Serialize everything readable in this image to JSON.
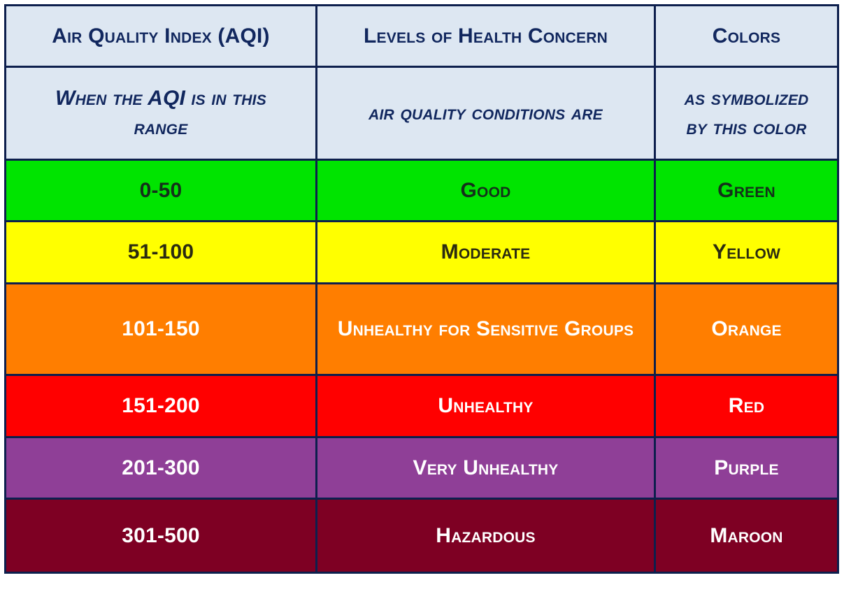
{
  "header": {
    "col1": "Air Quality Index (AQI)",
    "col2": "Levels of Health Concern",
    "col3": "Colors"
  },
  "subheader": {
    "col1": "When the AQI is in this range",
    "col2": "air quality conditions are",
    "col3": "as symbolized by this color"
  },
  "colors": {
    "header_bg": "#dde7f2",
    "header_text": "#11275e",
    "border": "#0d1f4d"
  },
  "rows": [
    {
      "range": "0-50",
      "level": "Good",
      "color": "Green",
      "bg": "#00e400",
      "text_color": "#14301a"
    },
    {
      "range": "51-100",
      "level": "Moderate",
      "color": "Yellow",
      "bg": "#ffff00",
      "text_color": "#2b2b10"
    },
    {
      "range": "101-150",
      "level": "Unhealthy for Sensitive Groups",
      "color": "Orange",
      "bg": "#ff7e00",
      "text_color": "#ffffff"
    },
    {
      "range": "151-200",
      "level": "Unhealthy",
      "color": "Red",
      "bg": "#ff0000",
      "text_color": "#ffffff"
    },
    {
      "range": "201-300",
      "level": "Very Unhealthy",
      "color": "Purple",
      "bg": "#8f3f97",
      "text_color": "#ffffff"
    },
    {
      "range": "301-500",
      "level": "Hazardous",
      "color": "Maroon",
      "bg": "#7e0023",
      "text_color": "#ffffff"
    }
  ]
}
